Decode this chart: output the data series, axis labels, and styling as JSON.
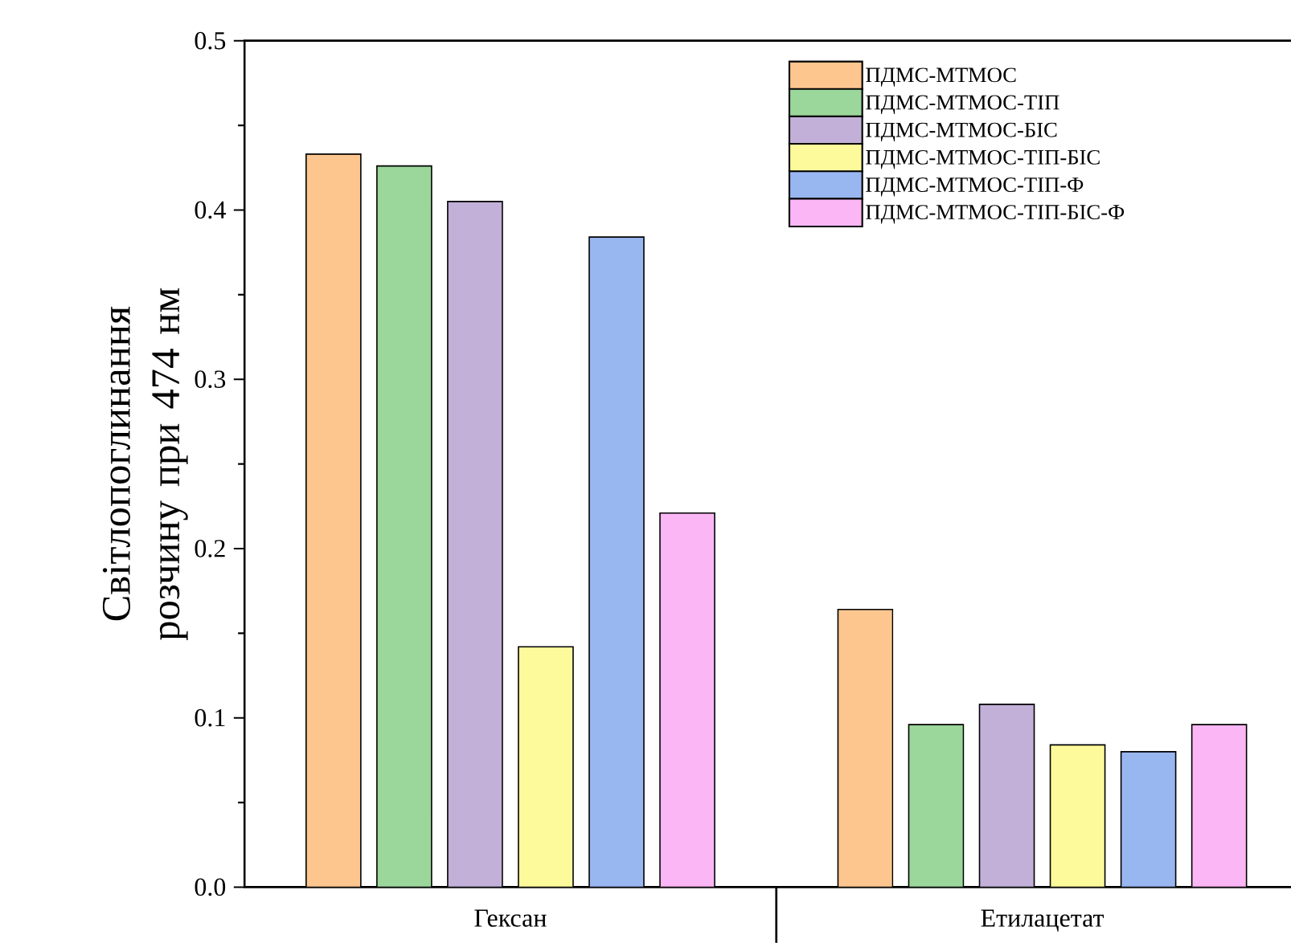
{
  "chart_data": {
    "type": "bar",
    "ylabel": "Світлопоглинання розчину при 474 нм",
    "categories": [
      "Гексан",
      "Етилацетат"
    ],
    "series": [
      {
        "name": "ПДМС-МТМОС",
        "color": "#fdc68f",
        "values": [
          0.433,
          0.164
        ]
      },
      {
        "name": "ПДМС-МТМОС-ТІП",
        "color": "#9bd69b",
        "values": [
          0.426,
          0.096
        ]
      },
      {
        "name": "ПДМС-МТМОС-БІС",
        "color": "#c2b0d8",
        "values": [
          0.405,
          0.108
        ]
      },
      {
        "name": "ПДМС-МТМОС-ТІП-БІС",
        "color": "#fdfa9c",
        "values": [
          0.142,
          0.084
        ]
      },
      {
        "name": "ПДМС-МТМОС-ТІП-Ф",
        "color": "#98b6f0",
        "values": [
          0.384,
          0.08
        ]
      },
      {
        "name": "ПДМС-МТМОС-ТІП-БІС-Ф",
        "color": "#fbb6f5",
        "values": [
          0.221,
          0.096
        ]
      }
    ],
    "ylim": [
      0,
      0.5
    ],
    "yticks": [
      {
        "value": 0,
        "label": "0.0"
      },
      0.1,
      0.2,
      0.3,
      0.4,
      0.5
    ],
    "grid": false,
    "legend": "top right"
  }
}
